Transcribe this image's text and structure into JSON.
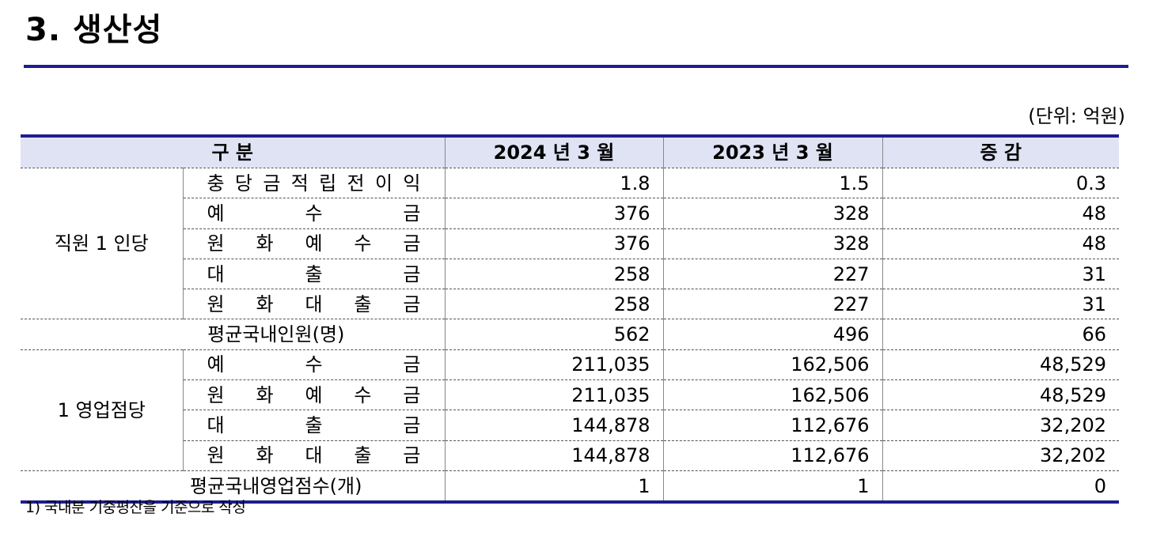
{
  "title": "3. 생산성",
  "unit": "(단위: 억원)",
  "table": {
    "headers": [
      "구 분",
      "2024 년 3 월",
      "2023 년 3 월",
      "증 감"
    ],
    "groups": [
      {
        "label": "직원 1 인당",
        "rows": [
          {
            "item": "충당금적립전이익",
            "v2024": "1.8",
            "v2023": "1.5",
            "diff": "0.3"
          },
          {
            "item": "예수금",
            "v2024": "376",
            "v2023": "328",
            "diff": "48"
          },
          {
            "item": "원화예수금",
            "v2024": "376",
            "v2023": "328",
            "diff": "48"
          },
          {
            "item": "대출금",
            "v2024": "258",
            "v2023": "227",
            "diff": "31"
          },
          {
            "item": "원화대출금",
            "v2024": "258",
            "v2023": "227",
            "diff": "31"
          }
        ]
      },
      {
        "label": "1 영업점당",
        "rows": [
          {
            "item": "예수금",
            "v2024": "211,035",
            "v2023": "162,506",
            "diff": "48,529"
          },
          {
            "item": "원화예수금",
            "v2024": "211,035",
            "v2023": "162,506",
            "diff": "48,529"
          },
          {
            "item": "대출금",
            "v2024": "144,878",
            "v2023": "112,676",
            "diff": "32,202"
          },
          {
            "item": "원화대출금",
            "v2024": "144,878",
            "v2023": "112,676",
            "diff": "32,202"
          }
        ]
      }
    ],
    "avg_staff": {
      "label": "평균국내인원(명)",
      "v2024": "562",
      "v2023": "496",
      "diff": "66"
    },
    "avg_branches": {
      "label": "평균국내영업점수(개)",
      "v2024": "1",
      "v2023": "1",
      "diff": "0"
    }
  },
  "footnote": "1) 국내분 기중평잔을 기준으로 작성"
}
